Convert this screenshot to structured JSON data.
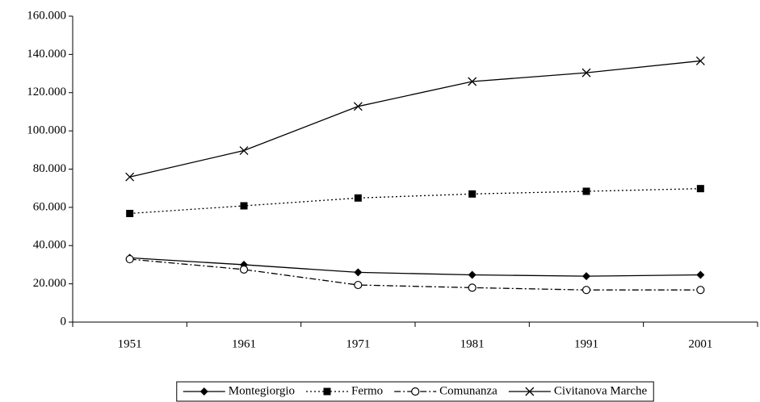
{
  "chart_data": {
    "type": "line",
    "categories": [
      "1951",
      "1961",
      "1971",
      "1981",
      "1991",
      "2001"
    ],
    "series": [
      {
        "name": "Montegiorgio",
        "color": "#000000",
        "line_style": "solid",
        "marker": "diamond",
        "values": [
          33600,
          30000,
          26000,
          24700,
          24000,
          24700
        ]
      },
      {
        "name": "Fermo",
        "color": "#000000",
        "line_style": "dotted",
        "marker": "square",
        "values": [
          56800,
          60800,
          64900,
          67000,
          68400,
          69800
        ]
      },
      {
        "name": "Comunanza",
        "color": "#000000",
        "line_style": "dashdot",
        "marker": "circle",
        "values": [
          32900,
          27500,
          19400,
          18000,
          16800,
          16800
        ]
      },
      {
        "name": "Civitanova Marche",
        "color": "#000000",
        "line_style": "solid",
        "marker": "x",
        "values": [
          75900,
          89700,
          112800,
          125800,
          130400,
          136600
        ]
      }
    ],
    "ylim": [
      0,
      160000
    ],
    "yticks": [
      0,
      {
        "value": 20000,
        "label": "20.000"
      },
      {
        "value": 40000,
        "label": "40.000"
      },
      {
        "value": 60000,
        "label": "60.000"
      },
      {
        "value": 80000,
        "label": "80.000"
      },
      {
        "value": 100000,
        "label": "100.000"
      },
      {
        "value": 120000,
        "label": "120.000"
      },
      {
        "value": 140000,
        "label": "140.000"
      },
      {
        "value": 160000,
        "label": "160.000"
      }
    ],
    "grid": false,
    "legend": "bottom"
  }
}
